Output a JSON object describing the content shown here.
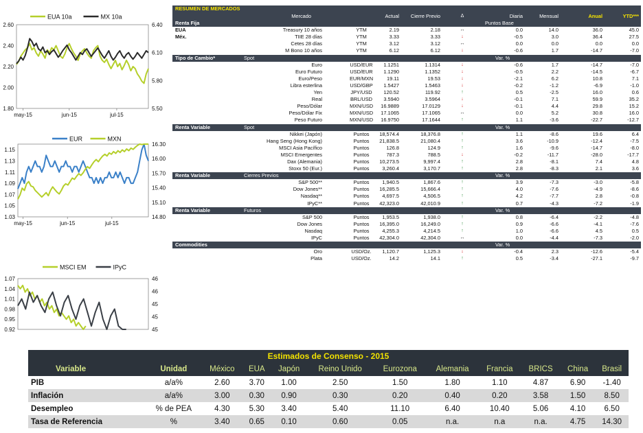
{
  "chart_data": [
    {
      "type": "line",
      "series": [
        {
          "name": "EUA 10a",
          "color": "#b5cf2a",
          "axis": "left",
          "values": [
            2.22,
            2.25,
            2.3,
            2.33,
            2.36,
            2.38,
            2.42,
            2.36,
            2.38,
            2.33,
            2.3,
            2.35,
            2.32,
            2.28,
            2.36,
            2.33,
            2.38,
            2.36,
            2.4,
            2.35,
            2.3,
            2.28,
            2.32,
            2.38,
            2.42,
            2.37,
            2.33,
            2.3,
            2.26,
            2.32,
            2.35,
            2.37,
            2.33,
            2.3,
            2.28,
            2.35,
            2.38,
            2.4,
            2.3,
            2.26,
            2.24,
            2.27,
            2.22,
            2.18,
            2.22,
            2.26,
            2.2,
            2.23,
            2.17,
            2.21,
            2.26,
            2.22,
            2.16,
            2.2,
            2.18,
            2.13,
            2.1,
            2.06,
            2.04,
            2.13,
            2.18
          ]
        },
        {
          "name": "MX 10a",
          "color": "#2a2a2a",
          "axis": "right",
          "values": [
            5.98,
            6.01,
            6.05,
            6.02,
            6.07,
            6.15,
            6.25,
            6.22,
            6.17,
            6.2,
            6.14,
            6.12,
            6.16,
            6.1,
            6.12,
            6.08,
            6.11,
            6.13,
            6.09,
            6.05,
            6.08,
            6.12,
            6.15,
            6.18,
            6.13,
            6.1,
            6.06,
            6.02,
            6.06,
            6.1,
            6.08,
            6.12,
            6.14,
            6.1,
            6.06,
            6.09,
            6.12,
            6.15,
            6.11,
            6.07,
            6.04,
            6.08,
            6.12,
            6.06,
            6.02,
            6.05,
            6.09,
            6.12,
            6.07,
            6.04,
            6.08,
            6.1,
            6.06,
            6.03,
            6.06,
            6.1,
            6.07,
            6.04,
            6.08,
            6.12,
            6.1
          ]
        }
      ],
      "ylim": [
        1.8,
        2.6
      ],
      "yticks": [
        "2.60",
        "2.40",
        "2.20",
        "2.00",
        "1.80"
      ],
      "ylim_right": [
        5.5,
        6.4
      ],
      "yticks_right": [
        "6.40",
        "6.10",
        "5.80",
        "5.50"
      ],
      "xticks": [
        "may-15",
        "jun-15",
        "jul-15"
      ],
      "legend": "top"
    },
    {
      "type": "line",
      "series": [
        {
          "name": "EUR",
          "color": "#3a80c8",
          "axis": "left",
          "values": [
            1.08,
            1.09,
            1.1,
            1.09,
            1.11,
            1.12,
            1.11,
            1.12,
            1.13,
            1.12,
            1.12,
            1.11,
            1.12,
            1.14,
            1.13,
            1.12,
            1.12,
            1.13,
            1.12,
            1.11,
            1.12,
            1.12,
            1.13,
            1.12,
            1.12,
            1.11,
            1.12,
            1.12,
            1.11,
            1.12,
            1.13,
            1.12,
            1.11,
            1.1,
            1.1,
            1.09,
            1.1,
            1.09,
            1.1,
            1.09,
            1.1,
            1.1,
            1.11,
            1.1,
            1.1,
            1.11,
            1.1,
            1.11,
            1.1,
            1.09,
            1.1,
            1.1,
            1.09,
            1.09,
            1.1,
            1.11,
            1.13,
            1.15,
            1.16,
            1.14,
            1.13
          ]
        },
        {
          "name": "MXN",
          "color": "#b5cf2a",
          "axis": "right",
          "values": [
            15.2,
            15.3,
            15.45,
            15.4,
            15.55,
            15.6,
            15.5,
            15.48,
            15.4,
            15.35,
            15.3,
            15.25,
            15.3,
            15.35,
            15.28,
            15.4,
            15.48,
            15.42,
            15.36,
            15.32,
            15.4,
            15.5,
            15.55,
            15.52,
            15.6,
            15.68,
            15.65,
            15.72,
            15.78,
            15.74,
            15.8,
            15.88,
            15.94,
            15.9,
            15.98,
            16.05,
            16.1,
            16.05,
            16.12,
            16.18,
            16.22,
            16.18,
            16.25,
            16.22,
            16.28,
            16.24,
            16.3,
            16.26,
            16.32,
            16.28,
            16.34,
            16.3,
            16.36,
            16.33,
            16.38,
            16.42,
            16.46,
            16.44,
            16.48,
            16.52,
            16.55
          ]
        }
      ],
      "ylim": [
        1.03,
        1.16
      ],
      "yticks": [
        "1.15",
        "1.13",
        "1.11",
        "1.09",
        "1.07",
        "1.05",
        "1.03"
      ],
      "ylim_right": [
        14.8,
        16.45
      ],
      "yticks_right": [
        "16.30",
        "16.00",
        "15.70",
        "15.40",
        "15.10",
        "14.80"
      ],
      "xticks": [
        "may-15",
        "jun-15",
        "jul-15"
      ],
      "legend": "top"
    },
    {
      "type": "line",
      "series": [
        {
          "name": "MSCI EM",
          "color": "#b5cf2a",
          "axis": "left",
          "values": [
            1.05,
            1.04,
            1.05,
            1.03,
            1.04,
            1.02,
            1.03,
            1.01,
            1.02,
            1.0,
            1.01,
            0.99,
            1.0,
            0.98,
            0.99,
            0.97,
            0.98,
            0.96,
            0.97,
            0.96,
            0.95,
            0.96,
            0.94,
            0.95,
            0.93,
            0.94,
            0.93,
            0.92,
            0.93
          ]
        },
        {
          "name": "IPyC",
          "color": "#3a3f46",
          "axis": "right",
          "values": [
            45.2,
            45.4,
            45.1,
            45.6,
            45.3,
            45.5,
            45.2,
            45.0,
            45.4,
            45.6,
            45.2,
            44.9,
            45.3,
            45.5,
            45.1,
            44.8,
            45.2,
            45.4,
            45.0,
            44.6,
            45.0,
            45.3,
            44.8,
            44.5,
            44.9,
            45.1,
            44.6,
            44.3,
            44.5
          ]
        }
      ],
      "ylim": [
        0.92,
        1.07
      ],
      "yticks": [
        "1.07",
        "1.04",
        "1.01",
        "0.98",
        "0.95",
        "0.92"
      ],
      "ylim_right": [
        44.5,
        46
      ],
      "yticks_right": [
        "46",
        "46",
        "45",
        "45",
        "45"
      ],
      "legend": "top"
    }
  ],
  "market": {
    "title": "RESUMEN DE MERCADOS",
    "headers": {
      "mercado": "Mercado",
      "actual": "Actual",
      "previo": "Cierre Previo",
      "delta": "Δ",
      "diaria": "Diaria",
      "mensual": "Mensual",
      "anual": "Anual",
      "ytd": "YTD***",
      "subunit": "Puntos Base"
    },
    "sections": [
      {
        "name": "Renta Fija",
        "spot": "",
        "varlabel": "",
        "rows": [
          {
            "g": "EUA",
            "i": "Treasury 10 años",
            "u": "YTM",
            "a": "2.19",
            "p": "2.18",
            "d": "flat",
            "dd": "0.0",
            "m": "14.0",
            "an": "36.0",
            "y": "45.0"
          },
          {
            "g": "Méx.",
            "i": "TIIE 28 días",
            "u": "YTM",
            "a": "3.33",
            "p": "3.33",
            "d": "down",
            "dd": "-0.5",
            "m": "3.0",
            "an": "36.4",
            "y": "27.5"
          },
          {
            "g": "",
            "i": "Cetes 28 días",
            "u": "YTM",
            "a": "3.12",
            "p": "3.12",
            "d": "flat",
            "dd": "0.0",
            "m": "0.0",
            "an": "0.0",
            "y": "0.0"
          },
          {
            "g": "",
            "i": "M Bono 10 años",
            "u": "YTM",
            "a": "6.12",
            "p": "6.12",
            "d": "down",
            "dd": "-0.6",
            "m": "1.7",
            "an": "-14.7",
            "y": "-7.0"
          }
        ]
      },
      {
        "name": "Tipo de Cambio*",
        "spot": "Spot",
        "varlabel": "Var. %",
        "rows": [
          {
            "g": "",
            "i": "Euro",
            "u": "USD/EUR",
            "a": "1.1251",
            "p": "1.1314",
            "d": "down",
            "dd": "-0.6",
            "m": "1.7",
            "an": "-14.7",
            "y": "-7.0"
          },
          {
            "g": "",
            "i": "Euro Futuro",
            "u": "USD/EUR",
            "a": "1.1290",
            "p": "1.1352",
            "d": "down",
            "dd": "-0.5",
            "m": "2.2",
            "an": "-14.5",
            "y": "-6.7"
          },
          {
            "g": "",
            "i": "Euro/Peso",
            "u": "EUR/MXN",
            "a": "19.11",
            "p": "19.53",
            "d": "down",
            "dd": "-2.1",
            "m": "6.2",
            "an": "10.8",
            "y": "7.1"
          },
          {
            "g": "",
            "i": "Libra esterlina",
            "u": "USD/GBP",
            "a": "1.5427",
            "p": "1.5463",
            "d": "down",
            "dd": "-0.2",
            "m": "-1.2",
            "an": "-6.9",
            "y": "-1.0"
          },
          {
            "g": "",
            "i": "Yen",
            "u": "JPY/USD",
            "a": "120.52",
            "p": "119.92",
            "d": "up",
            "dd": "0.5",
            "m": "-2.5",
            "an": "16.0",
            "y": "0.6"
          },
          {
            "g": "",
            "i": "Real",
            "u": "BRL/USD",
            "a": "3.5940",
            "p": "3.5964",
            "d": "down",
            "dd": "-0.1",
            "m": "7.1",
            "an": "59.9",
            "y": "35.2"
          },
          {
            "g": "",
            "i": "Peso/Dólar",
            "u": "MXN/USD",
            "a": "16.9889",
            "p": "17.0129",
            "d": "down",
            "dd": "-0.1",
            "m": "4.4",
            "an": "29.8",
            "y": "15.2"
          },
          {
            "g": "",
            "i": "Peso/Dólar Fix",
            "u": "MXN/USD",
            "a": "17.1065",
            "p": "17.1065",
            "d": "flat",
            "dd": "0.0",
            "m": "5.2",
            "an": "30.8",
            "y": "16.0"
          },
          {
            "g": "",
            "i": "Peso Futuro",
            "u": "MXN/USD",
            "a": "16.9750",
            "p": "17.1644",
            "d": "up",
            "dd": "1.1",
            "m": "-3.6",
            "an": "-22.7",
            "y": "-12.7"
          }
        ]
      },
      {
        "name": "Renta Variable",
        "spot": "Spot",
        "varlabel": "Var. %",
        "rows": [
          {
            "g": "",
            "i": "Nikkei (Japón)",
            "u": "Puntos",
            "a": "18,574.4",
            "p": "18,376.8",
            "d": "up",
            "dd": "1.1",
            "m": "-8.6",
            "an": "19.6",
            "y": "6.4"
          },
          {
            "g": "",
            "i": "Hang Seng (Hong Kong)",
            "u": "Puntos",
            "a": "21,838.5",
            "p": "21,080.4",
            "d": "up",
            "dd": "3.6",
            "m": "-10.9",
            "an": "-12.4",
            "y": "-7.5"
          },
          {
            "g": "",
            "i": "MSCI Asia Pacífico",
            "u": "Puntos",
            "a": "126.8",
            "p": "124.9",
            "d": "up",
            "dd": "1.6",
            "m": "-9.6",
            "an": "-14.7",
            "y": "-8.0"
          },
          {
            "g": "",
            "i": "MSCI Emergentes",
            "u": "Puntos",
            "a": "787.3",
            "p": "788.5",
            "d": "down",
            "dd": "-0.2",
            "m": "-11.7",
            "an": "-28.0",
            "y": "-17.7"
          },
          {
            "g": "",
            "i": "Dax (Alemania)",
            "u": "Puntos",
            "a": "10,273.5",
            "p": "9,997.4",
            "d": "up",
            "dd": "2.8",
            "m": "-8.1",
            "an": "7.4",
            "y": "4.8"
          },
          {
            "g": "",
            "i": "Stoxx 50 (Eur.)",
            "u": "Puntos",
            "a": "3,260.4",
            "p": "3,170.7",
            "d": "up",
            "dd": "2.8",
            "m": "-8.3",
            "an": "2.1",
            "y": "3.6"
          }
        ]
      },
      {
        "name": "Renta Variable",
        "spot": "Cierres Previos",
        "varlabel": "Var. %",
        "rows": [
          {
            "g": "",
            "i": "S&P 500**",
            "u": "Puntos",
            "a": "1,940.5",
            "p": "1,867.6",
            "d": "up",
            "dd": "3.9",
            "m": "-7.3",
            "an": "-3.0",
            "y": "-5.8"
          },
          {
            "g": "",
            "i": "Dow Jones**",
            "u": "Puntos",
            "a": "16,285.5",
            "p": "15,666.4",
            "d": "up",
            "dd": "4.0",
            "m": "-7.6",
            "an": "-4.9",
            "y": "-8.6"
          },
          {
            "g": "",
            "i": "Nasdaq**",
            "u": "Puntos",
            "a": "4,697.5",
            "p": "4,506.5",
            "d": "up",
            "dd": "4.2",
            "m": "-7.7",
            "an": "2.8",
            "y": "-0.8"
          },
          {
            "g": "",
            "i": "IPyC**",
            "u": "Puntos",
            "a": "42,323.0",
            "p": "42,010.9",
            "d": "up",
            "dd": "0.7",
            "m": "-4.3",
            "an": "-7.2",
            "y": "-1.9"
          }
        ]
      },
      {
        "name": "Renta Variable",
        "spot": "Futuros",
        "varlabel": "Var. %",
        "rows": [
          {
            "g": "",
            "i": "S&P 500",
            "u": "Puntos",
            "a": "1,953.5",
            "p": "1,938.0",
            "d": "up",
            "dd": "0.8",
            "m": "-6.4",
            "an": "-2.2",
            "y": "-4.8"
          },
          {
            "g": "",
            "i": "Dow Jones",
            "u": "Puntos",
            "a": "16,395.0",
            "p": "16,249.0",
            "d": "up",
            "dd": "0.9",
            "m": "-6.6",
            "an": "-4.1",
            "y": "-7.6"
          },
          {
            "g": "",
            "i": "Nasdaq",
            "u": "Puntos",
            "a": "4,255.3",
            "p": "4,214.5",
            "d": "up",
            "dd": "1.0",
            "m": "-6.6",
            "an": "4.5",
            "y": "0.5"
          },
          {
            "g": "",
            "i": "IPyC",
            "u": "Puntos",
            "a": "42,304.0",
            "p": "42,304.0",
            "d": "flat",
            "dd": "0.0",
            "m": "-4.4",
            "an": "-7.3",
            "y": "-2.0"
          }
        ]
      },
      {
        "name": "Commodities",
        "spot": "",
        "varlabel": "Var. %",
        "rows": [
          {
            "g": "",
            "i": "Oro",
            "u": "USD/Oz.",
            "a": "1,120.7",
            "p": "1,125.3",
            "d": "down",
            "dd": "-0.4",
            "m": "2.3",
            "an": "-12.6",
            "y": "-5.4"
          },
          {
            "g": "",
            "i": "Plata",
            "u": "USD/Oz.",
            "a": "14.2",
            "p": "14.1",
            "d": "up",
            "dd": "0.5",
            "m": "-3.4",
            "an": "-27.1",
            "y": "-9.7"
          }
        ]
      }
    ]
  },
  "consensus": {
    "title": "Estimados de Consenso - 2015",
    "headers": [
      "Variable",
      "Unidad",
      "México",
      "EUA",
      "Japón",
      "Reino Unido",
      "Eurozona",
      "Alemania",
      "Francia",
      "BRICS",
      "China",
      "Brasil"
    ],
    "rows": [
      [
        "PIB",
        "a/a%",
        "2.60",
        "3.70",
        "1.00",
        "2.50",
        "1.50",
        "1.80",
        "1.10",
        "4.87",
        "6.90",
        "-1.40"
      ],
      [
        "Inflación",
        "a/a%",
        "3.00",
        "0.30",
        "0.90",
        "0.30",
        "0.20",
        "0.40",
        "0.20",
        "3.58",
        "1.50",
        "8.50"
      ],
      [
        "Desempleo",
        "% de PEA",
        "4.30",
        "5.30",
        "3.40",
        "5.40",
        "11.10",
        "6.40",
        "10.40",
        "5.06",
        "4.10",
        "6.50"
      ],
      [
        "Tasa de Referencia",
        "%",
        "3.40",
        "0.65",
        "0.10",
        "0.60",
        "0.05",
        "n.a.",
        "n.a",
        "n.a.",
        "4.75",
        "14.30"
      ]
    ]
  }
}
